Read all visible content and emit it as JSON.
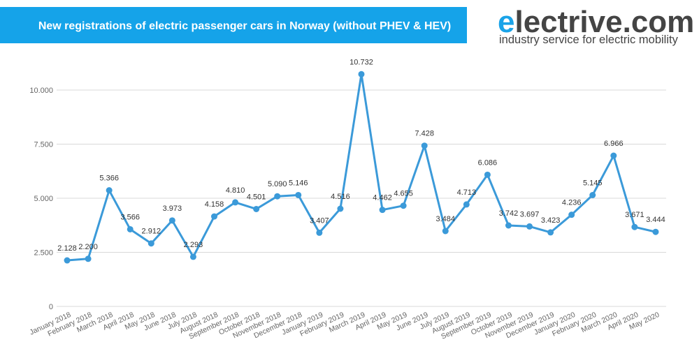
{
  "brand": {
    "initial": "e",
    "rest": "lectrive.com",
    "tagline": "industry service for electric mobility"
  },
  "chart_data": {
    "type": "line",
    "title": "New registrations of electric passenger cars in Norway (without PHEV & HEV)",
    "categories": [
      "January 2018",
      "February 2018",
      "March 2018",
      "April 2018",
      "May 2018",
      "June 2018",
      "July 2018",
      "August 2018",
      "September 2018",
      "October 2018",
      "November 2018",
      "December 2018",
      "January 2019",
      "February 2019",
      "March 2019",
      "April 2019",
      "May 2019",
      "June 2019",
      "July 2019",
      "August 2019",
      "September 2019",
      "October 2019",
      "November 2019",
      "December 2019",
      "January 2020",
      "February 2020",
      "March 2020",
      "April 2020",
      "May 2020"
    ],
    "values": [
      2128,
      2200,
      5366,
      3566,
      2912,
      3973,
      2293,
      4158,
      4810,
      4501,
      5090,
      5146,
      3407,
      4516,
      10732,
      4462,
      4655,
      7428,
      3484,
      4713,
      6086,
      3742,
      3697,
      3423,
      4236,
      5145,
      6966,
      3671,
      3444
    ],
    "value_labels": [
      "2.128",
      "2.200",
      "5.366",
      "3.566",
      "2.912",
      "3.973",
      "2.293",
      "4.158",
      "4.810",
      "4.501",
      "5.090",
      "5.146",
      "3.407",
      "4.516",
      "10.732",
      "4.462",
      "4.655",
      "7.428",
      "3.484",
      "4.713",
      "6.086",
      "3.742",
      "3.697",
      "3.423",
      "4.236",
      "5.145",
      "6.966",
      "3.671",
      "3.444"
    ],
    "color": "#3b9ad9",
    "ylim": [
      0,
      12000
    ],
    "yticks": [
      0,
      {
        "value": 2500,
        "label": "2.500"
      },
      {
        "value": 5000,
        "label": "5.000"
      },
      {
        "value": 7500,
        "label": "7.500"
      },
      {
        "value": 10000,
        "label": "10.000"
      }
    ],
    "grid": true
  }
}
